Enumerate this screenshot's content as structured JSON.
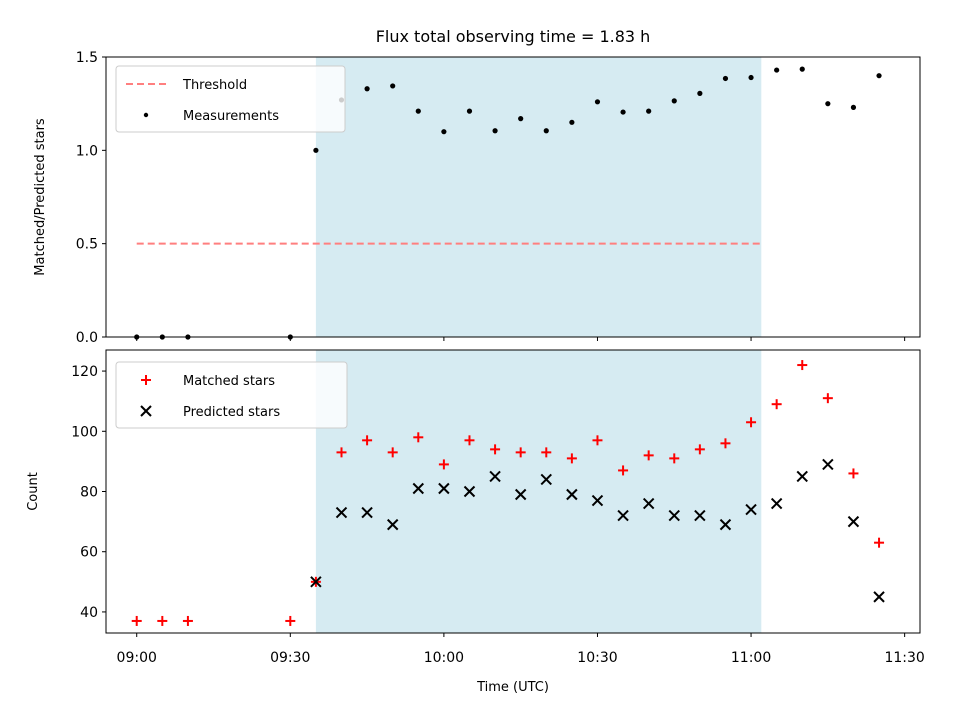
{
  "colors": {
    "shade": "#add8e6",
    "threshold": "#ff7f7f",
    "matched": "#ff0000",
    "predicted": "#000000",
    "measure": "#000000"
  },
  "chart_data": [
    {
      "type": "scatter",
      "title": "Flux total observing time = 1.83 h",
      "xlabel": "",
      "ylabel": "Matched/Predicted stars",
      "ylim": [
        0,
        1.5
      ],
      "yticks": [
        0.0,
        0.5,
        1.0,
        1.5
      ],
      "ytick_labels": [
        "0.0",
        "0.5",
        "1.0",
        "1.5"
      ],
      "shaded_interval_min": [
        35,
        122
      ],
      "threshold": {
        "name": "Threshold",
        "value": 0.5,
        "x_range_min": [
          0,
          122
        ]
      },
      "legend": [
        "Threshold",
        "Measurements"
      ],
      "series": [
        {
          "name": "Measurements",
          "x_min": [
            0,
            5,
            10,
            30,
            35,
            40,
            45,
            50,
            55,
            60,
            65,
            70,
            75,
            80,
            85,
            90,
            95,
            100,
            105,
            110,
            115,
            120,
            125,
            130,
            135,
            140,
            145
          ],
          "values": [
            0,
            0,
            0,
            0,
            1.0,
            1.27,
            1.33,
            1.345,
            1.21,
            1.1,
            1.21,
            1.105,
            1.17,
            1.105,
            1.15,
            1.26,
            1.205,
            1.21,
            1.265,
            1.305,
            1.385,
            1.39,
            1.43,
            1.435,
            1.25,
            1.23,
            1.4
          ]
        }
      ]
    },
    {
      "type": "scatter",
      "xlabel": "Time (UTC)",
      "ylabel": "Count",
      "ylim": [
        33,
        127
      ],
      "yticks": [
        40,
        60,
        80,
        100,
        120
      ],
      "ytick_labels": [
        "40",
        "60",
        "80",
        "100",
        "120"
      ],
      "xlim_min": [
        -6,
        153
      ],
      "xticks_min": [
        0,
        30,
        60,
        90,
        120,
        150
      ],
      "xtick_labels": [
        "09:00",
        "09:30",
        "10:00",
        "10:30",
        "11:00",
        "11:30"
      ],
      "shaded_interval_min": [
        35,
        122
      ],
      "legend": [
        "Matched stars",
        "Predicted stars"
      ],
      "series": [
        {
          "name": "Matched stars",
          "x_min": [
            0,
            5,
            10,
            30,
            35,
            40,
            45,
            50,
            55,
            60,
            65,
            70,
            75,
            80,
            85,
            90,
            95,
            100,
            105,
            110,
            115,
            120,
            125,
            130,
            135,
            140,
            145
          ],
          "values": [
            37,
            37,
            37,
            37,
            50,
            93,
            97,
            93,
            98,
            89,
            97,
            94,
            93,
            93,
            91,
            97,
            87,
            92,
            91,
            94,
            96,
            103,
            109,
            122,
            111,
            86,
            63
          ]
        },
        {
          "name": "Predicted stars",
          "x_min": [
            35,
            40,
            45,
            50,
            55,
            60,
            65,
            70,
            75,
            80,
            85,
            90,
            95,
            100,
            105,
            110,
            115,
            120,
            125,
            130,
            135,
            140,
            145
          ],
          "values": [
            50,
            73,
            73,
            69,
            81,
            81,
            80,
            85,
            79,
            84,
            79,
            77,
            72,
            76,
            72,
            72,
            69,
            74,
            76,
            85,
            89,
            70,
            45
          ]
        }
      ]
    }
  ]
}
